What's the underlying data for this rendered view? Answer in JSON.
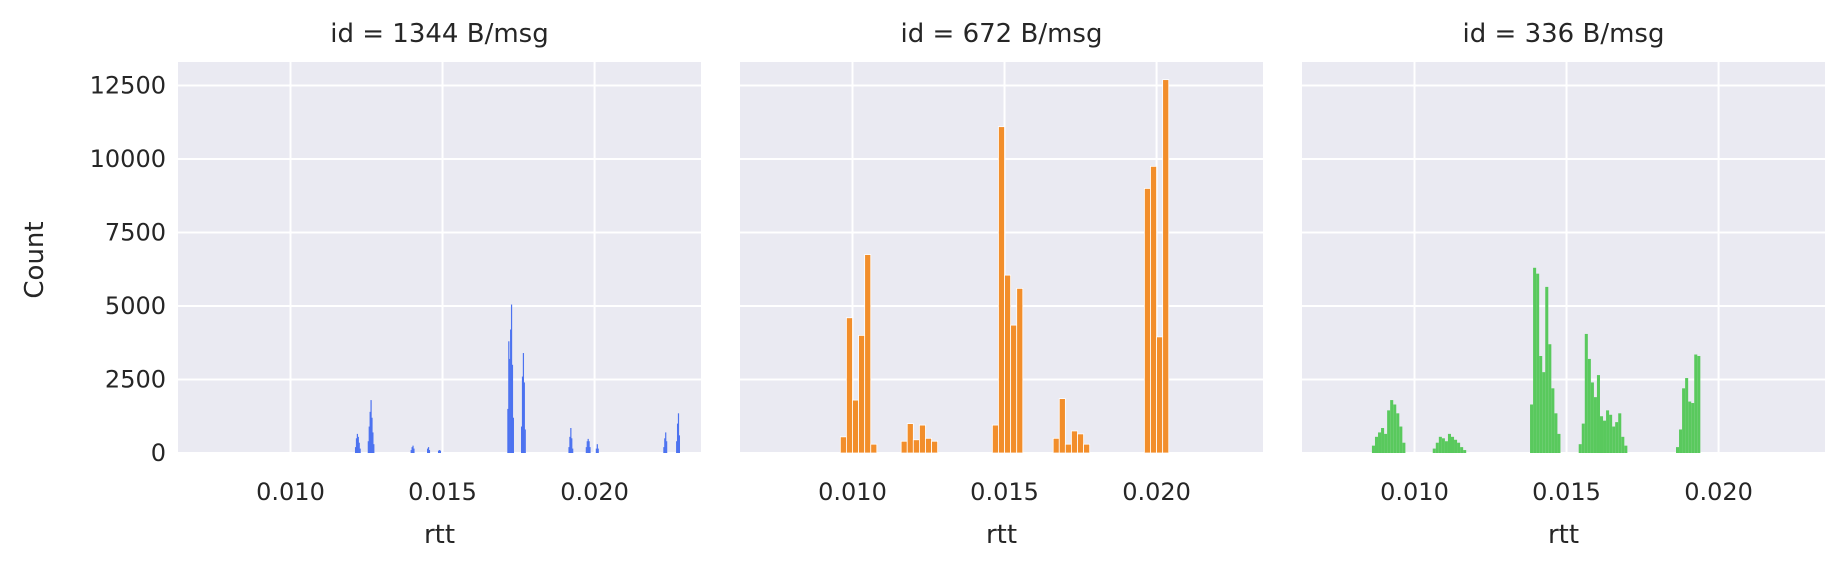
{
  "figure": {
    "ylabel": "Count",
    "xlabel": "rtt"
  },
  "chart_data": [
    {
      "type": "bar",
      "title": "id = 1344 B/msg",
      "xlabel": "rtt",
      "ylabel": "Count",
      "xlim": [
        0.0063,
        0.0235
      ],
      "ylim": [
        0,
        13300
      ],
      "xticks": [
        "0.010",
        "0.015",
        "0.020"
      ],
      "yticks": [
        "0",
        "2500",
        "5000",
        "7500",
        "10000",
        "12500"
      ],
      "color": "#4c72f0",
      "grid": true,
      "bins": [
        {
          "x": 0.01212,
          "w": 3e-05,
          "v": 200
        },
        {
          "x": 0.01215,
          "w": 3e-05,
          "v": 500
        },
        {
          "x": 0.01218,
          "w": 3e-05,
          "v": 650
        },
        {
          "x": 0.01221,
          "w": 3e-05,
          "v": 550
        },
        {
          "x": 0.01224,
          "w": 3e-05,
          "v": 350
        },
        {
          "x": 0.01227,
          "w": 3e-05,
          "v": 150
        },
        {
          "x": 0.01254,
          "w": 3e-05,
          "v": 400
        },
        {
          "x": 0.01257,
          "w": 3e-05,
          "v": 900
        },
        {
          "x": 0.0126,
          "w": 3e-05,
          "v": 1400
        },
        {
          "x": 0.01263,
          "w": 3e-05,
          "v": 1800
        },
        {
          "x": 0.01266,
          "w": 3e-05,
          "v": 1200
        },
        {
          "x": 0.01269,
          "w": 3e-05,
          "v": 700
        },
        {
          "x": 0.01272,
          "w": 3e-05,
          "v": 300
        },
        {
          "x": 0.01395,
          "w": 3e-05,
          "v": 100
        },
        {
          "x": 0.01398,
          "w": 3e-05,
          "v": 200
        },
        {
          "x": 0.01401,
          "w": 3e-05,
          "v": 250
        },
        {
          "x": 0.01404,
          "w": 3e-05,
          "v": 150
        },
        {
          "x": 0.01449,
          "w": 3e-05,
          "v": 150
        },
        {
          "x": 0.01452,
          "w": 3e-05,
          "v": 200
        },
        {
          "x": 0.01455,
          "w": 3e-05,
          "v": 100
        },
        {
          "x": 0.01485,
          "w": 3e-05,
          "v": 80
        },
        {
          "x": 0.01488,
          "w": 3e-05,
          "v": 100
        },
        {
          "x": 0.01491,
          "w": 3e-05,
          "v": 80
        },
        {
          "x": 0.01713,
          "w": 3e-05,
          "v": 1500
        },
        {
          "x": 0.01716,
          "w": 3e-05,
          "v": 3800
        },
        {
          "x": 0.01719,
          "w": 3e-05,
          "v": 3200
        },
        {
          "x": 0.01722,
          "w": 3e-05,
          "v": 4200
        },
        {
          "x": 0.01725,
          "w": 3e-05,
          "v": 5050
        },
        {
          "x": 0.01728,
          "w": 3e-05,
          "v": 3000
        },
        {
          "x": 0.01731,
          "w": 3e-05,
          "v": 1200
        },
        {
          "x": 0.01758,
          "w": 3e-05,
          "v": 900
        },
        {
          "x": 0.01761,
          "w": 3e-05,
          "v": 2600
        },
        {
          "x": 0.01764,
          "w": 3e-05,
          "v": 3400
        },
        {
          "x": 0.01767,
          "w": 3e-05,
          "v": 2400
        },
        {
          "x": 0.0177,
          "w": 3e-05,
          "v": 800
        },
        {
          "x": 0.01914,
          "w": 3e-05,
          "v": 200
        },
        {
          "x": 0.01917,
          "w": 3e-05,
          "v": 550
        },
        {
          "x": 0.0192,
          "w": 3e-05,
          "v": 850
        },
        {
          "x": 0.01923,
          "w": 3e-05,
          "v": 500
        },
        {
          "x": 0.01926,
          "w": 3e-05,
          "v": 150
        },
        {
          "x": 0.01971,
          "w": 3e-05,
          "v": 200
        },
        {
          "x": 0.01974,
          "w": 3e-05,
          "v": 400
        },
        {
          "x": 0.01977,
          "w": 3e-05,
          "v": 480
        },
        {
          "x": 0.0198,
          "w": 3e-05,
          "v": 400
        },
        {
          "x": 0.01983,
          "w": 3e-05,
          "v": 200
        },
        {
          "x": 0.02004,
          "w": 3e-05,
          "v": 150
        },
        {
          "x": 0.02007,
          "w": 3e-05,
          "v": 300
        },
        {
          "x": 0.0201,
          "w": 3e-05,
          "v": 150
        },
        {
          "x": 0.02226,
          "w": 3e-05,
          "v": 200
        },
        {
          "x": 0.02229,
          "w": 3e-05,
          "v": 500
        },
        {
          "x": 0.02232,
          "w": 3e-05,
          "v": 700
        },
        {
          "x": 0.02235,
          "w": 3e-05,
          "v": 400
        },
        {
          "x": 0.02268,
          "w": 3e-05,
          "v": 400
        },
        {
          "x": 0.02271,
          "w": 3e-05,
          "v": 1000
        },
        {
          "x": 0.02274,
          "w": 3e-05,
          "v": 1350
        },
        {
          "x": 0.02277,
          "w": 3e-05,
          "v": 600
        }
      ]
    },
    {
      "type": "bar",
      "title": "id = 672 B/msg",
      "xlabel": "rtt",
      "ylabel": "",
      "xlim": [
        0.0063,
        0.0235
      ],
      "ylim": [
        0,
        13300
      ],
      "xticks": [
        "0.010",
        "0.015",
        "0.020"
      ],
      "yticks": [
        "0",
        "2500",
        "5000",
        "7500",
        "10000",
        "12500"
      ],
      "color": "#f28e2b",
      "grid": true,
      "bins": [
        {
          "x": 0.0096,
          "w": 0.0002,
          "v": 550
        },
        {
          "x": 0.0098,
          "w": 0.0002,
          "v": 4600
        },
        {
          "x": 0.01,
          "w": 0.0002,
          "v": 1800
        },
        {
          "x": 0.0102,
          "w": 0.0002,
          "v": 4000
        },
        {
          "x": 0.0104,
          "w": 0.0002,
          "v": 6750
        },
        {
          "x": 0.0106,
          "w": 0.0002,
          "v": 300
        },
        {
          "x": 0.0116,
          "w": 0.0002,
          "v": 400
        },
        {
          "x": 0.0118,
          "w": 0.0002,
          "v": 1000
        },
        {
          "x": 0.012,
          "w": 0.0002,
          "v": 450
        },
        {
          "x": 0.0122,
          "w": 0.0002,
          "v": 950
        },
        {
          "x": 0.0124,
          "w": 0.0002,
          "v": 500
        },
        {
          "x": 0.0126,
          "w": 0.0002,
          "v": 400
        },
        {
          "x": 0.0146,
          "w": 0.0002,
          "v": 950
        },
        {
          "x": 0.0148,
          "w": 0.0002,
          "v": 11100
        },
        {
          "x": 0.015,
          "w": 0.0002,
          "v": 6050
        },
        {
          "x": 0.0152,
          "w": 0.0002,
          "v": 4350
        },
        {
          "x": 0.0154,
          "w": 0.0002,
          "v": 5600
        },
        {
          "x": 0.0166,
          "w": 0.0002,
          "v": 500
        },
        {
          "x": 0.0168,
          "w": 0.0002,
          "v": 1850
        },
        {
          "x": 0.017,
          "w": 0.0002,
          "v": 300
        },
        {
          "x": 0.0172,
          "w": 0.0002,
          "v": 750
        },
        {
          "x": 0.0174,
          "w": 0.0002,
          "v": 650
        },
        {
          "x": 0.0176,
          "w": 0.0002,
          "v": 300
        },
        {
          "x": 0.0196,
          "w": 0.0002,
          "v": 9000
        },
        {
          "x": 0.0198,
          "w": 0.0002,
          "v": 9750
        },
        {
          "x": 0.02,
          "w": 0.0002,
          "v": 3950
        },
        {
          "x": 0.0202,
          "w": 0.0002,
          "v": 12700
        }
      ]
    },
    {
      "type": "bar",
      "title": "id = 336 B/msg",
      "xlabel": "rtt",
      "ylabel": "",
      "xlim": [
        0.0063,
        0.0235
      ],
      "ylim": [
        0,
        13300
      ],
      "xticks": [
        "0.010",
        "0.015",
        "0.020"
      ],
      "yticks": [
        "0",
        "2500",
        "5000",
        "7500",
        "10000",
        "12500"
      ],
      "color": "#59c95d",
      "grid": true,
      "bins": [
        {
          "x": 0.0086,
          "w": 0.0001,
          "v": 250
        },
        {
          "x": 0.0087,
          "w": 0.0001,
          "v": 550
        },
        {
          "x": 0.0088,
          "w": 0.0001,
          "v": 700
        },
        {
          "x": 0.0089,
          "w": 0.0001,
          "v": 850
        },
        {
          "x": 0.009,
          "w": 0.0001,
          "v": 650
        },
        {
          "x": 0.0091,
          "w": 0.0001,
          "v": 1450
        },
        {
          "x": 0.0092,
          "w": 0.0001,
          "v": 1800
        },
        {
          "x": 0.0093,
          "w": 0.0001,
          "v": 1650
        },
        {
          "x": 0.0094,
          "w": 0.0001,
          "v": 1350
        },
        {
          "x": 0.0095,
          "w": 0.0001,
          "v": 900
        },
        {
          "x": 0.0096,
          "w": 0.0001,
          "v": 350
        },
        {
          "x": 0.0106,
          "w": 0.0001,
          "v": 150
        },
        {
          "x": 0.0107,
          "w": 0.0001,
          "v": 350
        },
        {
          "x": 0.0108,
          "w": 0.0001,
          "v": 550
        },
        {
          "x": 0.0109,
          "w": 0.0001,
          "v": 500
        },
        {
          "x": 0.011,
          "w": 0.0001,
          "v": 400
        },
        {
          "x": 0.0111,
          "w": 0.0001,
          "v": 650
        },
        {
          "x": 0.0112,
          "w": 0.0001,
          "v": 550
        },
        {
          "x": 0.0113,
          "w": 0.0001,
          "v": 450
        },
        {
          "x": 0.0114,
          "w": 0.0001,
          "v": 350
        },
        {
          "x": 0.0115,
          "w": 0.0001,
          "v": 200
        },
        {
          "x": 0.0116,
          "w": 0.0001,
          "v": 100
        },
        {
          "x": 0.0138,
          "w": 0.0001,
          "v": 1650
        },
        {
          "x": 0.0139,
          "w": 0.0001,
          "v": 6300
        },
        {
          "x": 0.014,
          "w": 0.0001,
          "v": 6100
        },
        {
          "x": 0.0141,
          "w": 0.0001,
          "v": 3300
        },
        {
          "x": 0.0142,
          "w": 0.0001,
          "v": 2750
        },
        {
          "x": 0.0143,
          "w": 0.0001,
          "v": 5650
        },
        {
          "x": 0.0144,
          "w": 0.0001,
          "v": 3700
        },
        {
          "x": 0.0145,
          "w": 0.0001,
          "v": 2200
        },
        {
          "x": 0.0146,
          "w": 0.0001,
          "v": 1350
        },
        {
          "x": 0.0147,
          "w": 0.0001,
          "v": 650
        },
        {
          "x": 0.0154,
          "w": 0.0001,
          "v": 300
        },
        {
          "x": 0.0155,
          "w": 0.0001,
          "v": 1000
        },
        {
          "x": 0.0156,
          "w": 0.0001,
          "v": 4050
        },
        {
          "x": 0.0157,
          "w": 0.0001,
          "v": 3200
        },
        {
          "x": 0.0158,
          "w": 0.0001,
          "v": 2400
        },
        {
          "x": 0.0159,
          "w": 0.0001,
          "v": 1900
        },
        {
          "x": 0.016,
          "w": 0.0001,
          "v": 2650
        },
        {
          "x": 0.0161,
          "w": 0.0001,
          "v": 1250
        },
        {
          "x": 0.0162,
          "w": 0.0001,
          "v": 1100
        },
        {
          "x": 0.0163,
          "w": 0.0001,
          "v": 1450
        },
        {
          "x": 0.0164,
          "w": 0.0001,
          "v": 1300
        },
        {
          "x": 0.0165,
          "w": 0.0001,
          "v": 900
        },
        {
          "x": 0.0166,
          "w": 0.0001,
          "v": 1050
        },
        {
          "x": 0.0167,
          "w": 0.0001,
          "v": 1350
        },
        {
          "x": 0.0168,
          "w": 0.0001,
          "v": 550
        },
        {
          "x": 0.0169,
          "w": 0.0001,
          "v": 250
        },
        {
          "x": 0.0186,
          "w": 0.0001,
          "v": 200
        },
        {
          "x": 0.0187,
          "w": 0.0001,
          "v": 800
        },
        {
          "x": 0.0188,
          "w": 0.0001,
          "v": 2200
        },
        {
          "x": 0.0189,
          "w": 0.0001,
          "v": 2550
        },
        {
          "x": 0.019,
          "w": 0.0001,
          "v": 1750
        },
        {
          "x": 0.0191,
          "w": 0.0001,
          "v": 1700
        },
        {
          "x": 0.0192,
          "w": 0.0001,
          "v": 3350
        },
        {
          "x": 0.0193,
          "w": 0.0001,
          "v": 3300
        }
      ]
    }
  ]
}
